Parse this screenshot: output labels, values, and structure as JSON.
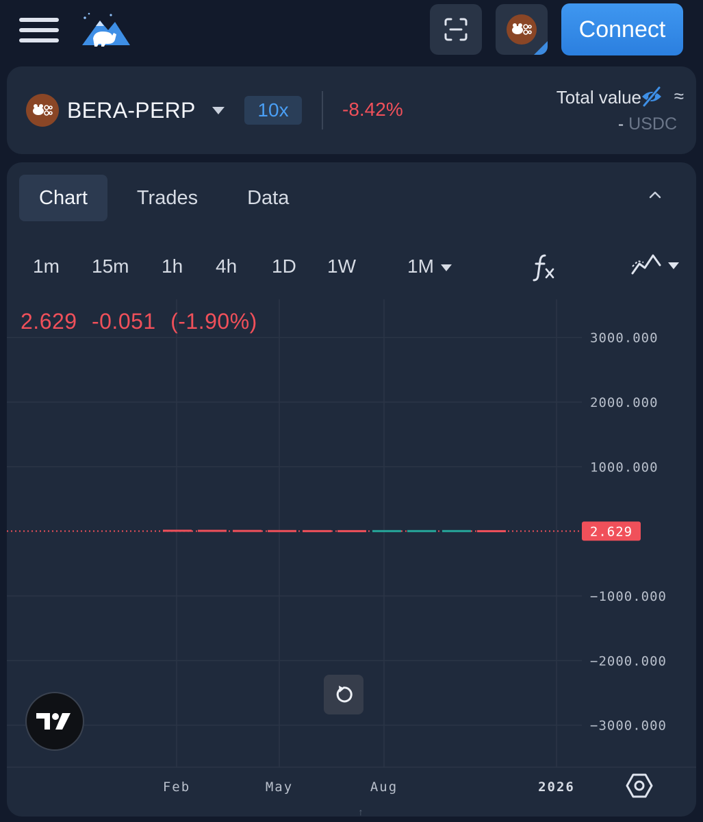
{
  "header": {
    "connect_label": "Connect"
  },
  "market": {
    "symbol": "BERA-PERP",
    "leverage": "10x",
    "change_pct": "-8.42%",
    "total_value_label": "Total value",
    "approx_symbol": "≈",
    "total_value": "-",
    "total_value_unit": "USDC"
  },
  "tabs": [
    "Chart",
    "Trades",
    "Data"
  ],
  "active_tab": "Chart",
  "intervals": [
    "1m",
    "15m",
    "1h",
    "4h",
    "1D",
    "1W"
  ],
  "selected_interval": "1M",
  "icons": {
    "menu": "hamburger-menu-icon",
    "logo": "bear-mountain-logo",
    "scan": "scan-icon",
    "avatar": "bear-avatar-icon",
    "hidden": "eye-off-icon",
    "collapse": "chevron-up-icon",
    "fx": "function-fx-icon",
    "indicators": "indicators-icon",
    "reset": "reset-icon",
    "tradingview": "tradingview-logo",
    "settings": "hexagon-settings-icon"
  },
  "colors": {
    "accent": "#2b7fdf",
    "negative": "#f0505a",
    "positive": "#26a69a",
    "panel": "#1f2a3c",
    "background": "#121a2b"
  },
  "chart_data": {
    "type": "candlestick",
    "legend": {
      "price": "2.629",
      "change": "-0.051",
      "change_pct": "(-1.90%)"
    },
    "last_price_label": "2.629",
    "y_ticks": [
      "3000.000",
      "2000.000",
      "1000.000",
      "−1000.000",
      "−2000.000",
      "−3000.000"
    ],
    "y_tick_values": [
      3000,
      2000,
      1000,
      -1000,
      -2000,
      -3000
    ],
    "ylim": [
      -3650,
      3590
    ],
    "x_ticks": [
      "Feb",
      "May",
      "Aug",
      "2026"
    ],
    "candles": [
      {
        "x": 0.0,
        "close": 8.9,
        "dir": "down"
      },
      {
        "x": 1.0,
        "close": 7.5,
        "dir": "down"
      },
      {
        "x": 2.0,
        "close": 5.8,
        "dir": "down"
      },
      {
        "x": 3.0,
        "close": 4.2,
        "dir": "down"
      },
      {
        "x": 4.0,
        "close": 3.5,
        "dir": "down"
      },
      {
        "x": 5.0,
        "close": 3.2,
        "dir": "down"
      },
      {
        "x": 6.0,
        "close": 3.6,
        "dir": "up"
      },
      {
        "x": 7.0,
        "close": 3.9,
        "dir": "up"
      },
      {
        "x": 8.0,
        "close": 4.1,
        "dir": "up"
      },
      {
        "x": 9.0,
        "close": 2.629,
        "dir": "down"
      }
    ],
    "last_price": 2.629,
    "grid": true
  }
}
